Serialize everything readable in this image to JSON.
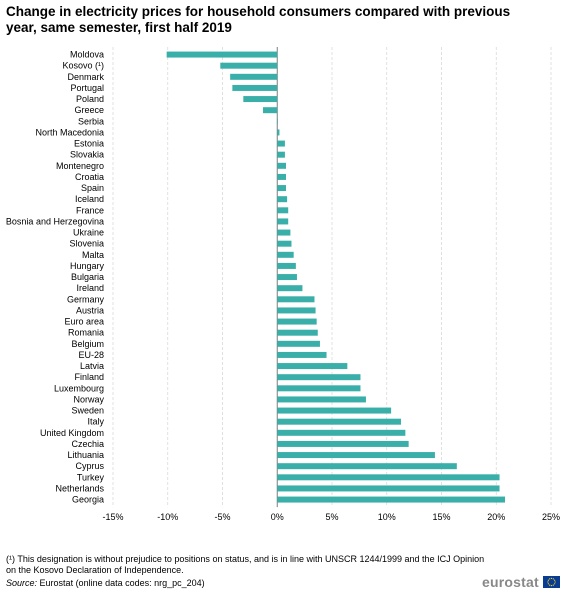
{
  "title": "Change in electricity prices for household consumers compared with previous year, same semester, first half 2019",
  "footnote": "(¹) This designation is without prejudice to positions on status, and is in line with UNSCR 1244/1999 and the ICJ Opinion on the Kosovo Declaration of Independence.",
  "source": {
    "label": "Source:",
    "text": "Eurostat (online data codes: nrg_pc_204)"
  },
  "logo": {
    "text": "eurostat",
    "flag_color": "#0a3d91",
    "star_color": "#ffd617"
  },
  "colors": {
    "bar": "#3aafa9",
    "grid": "#d9d9d9",
    "axis": "#7f7f7f"
  },
  "chart_data": {
    "type": "bar",
    "orientation": "horizontal",
    "xlim": [
      -15,
      25
    ],
    "ticks": [
      -15,
      -10,
      -5,
      0,
      5,
      10,
      15,
      20,
      25
    ],
    "tick_labels": [
      "-15%",
      "-10%",
      "-5%",
      "0%",
      "5%",
      "10%",
      "15%",
      "20%",
      "25%"
    ],
    "grid": true,
    "categories": [
      "Moldova",
      "Kosovo (¹)",
      "Denmark",
      "Portugal",
      "Poland",
      "Greece",
      "Serbia",
      "North Macedonia",
      "Estonia",
      "Slovakia",
      "Montenegro",
      "Croatia",
      "Spain",
      "Iceland",
      "France",
      "Bosnia and Herzegovina",
      "Ukraine",
      "Slovenia",
      "Malta",
      "Hungary",
      "Bulgaria",
      "Ireland",
      "Germany",
      "Austria",
      "Euro area",
      "Romania",
      "Belgium",
      "EU-28",
      "Latvia",
      "Finland",
      "Luxembourg",
      "Norway",
      "Sweden",
      "Italy",
      "United Kingdom",
      "Czechia",
      "Lithuania",
      "Cyprus",
      "Turkey",
      "Netherlands",
      "Georgia"
    ],
    "values": [
      -10.1,
      -5.2,
      -4.3,
      -4.1,
      -3.1,
      -1.3,
      0.0,
      0.2,
      0.7,
      0.7,
      0.8,
      0.8,
      0.8,
      0.9,
      1.0,
      1.0,
      1.2,
      1.3,
      1.5,
      1.7,
      1.8,
      2.3,
      3.4,
      3.5,
      3.6,
      3.7,
      3.9,
      4.5,
      6.4,
      7.6,
      7.6,
      8.1,
      10.4,
      11.3,
      11.7,
      12.0,
      14.4,
      16.4,
      20.3,
      20.3,
      20.8
    ]
  }
}
